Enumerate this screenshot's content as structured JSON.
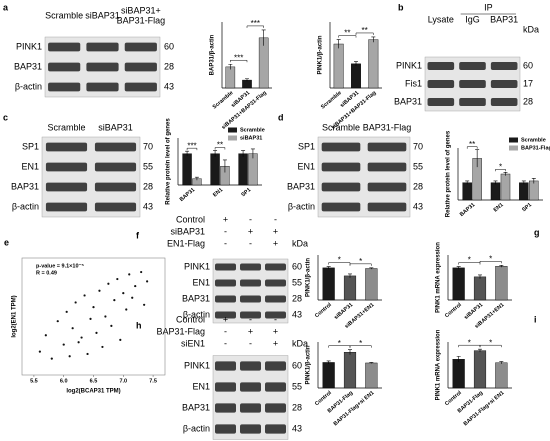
{
  "blots": [
    {
      "letter": "a",
      "columns": [
        "Scramble",
        "siBAP31",
        [
          "siBAP31+",
          "BAP31-Flag"
        ]
      ],
      "rows": [
        {
          "name": "PINK1",
          "kda": 60
        },
        {
          "name": "BAP31",
          "kda": 28
        },
        {
          "name": "β-actin",
          "kda": 43
        }
      ]
    },
    {
      "letter": "b",
      "ip_label": "IP",
      "kda_label": "kDa",
      "columns": [
        "Lysate",
        "IgG",
        "BAP31"
      ],
      "rows": [
        {
          "name": "PINK1",
          "kda": 60
        },
        {
          "name": "Fis1",
          "kda": 17
        },
        {
          "name": "BAP31",
          "kda": 28
        }
      ]
    },
    {
      "letter": "c",
      "columns": [
        "Scramble",
        "siBAP31"
      ],
      "rows": [
        {
          "name": "SP1",
          "kda": 70
        },
        {
          "name": "EN1",
          "kda": 55
        },
        {
          "name": "BAP31",
          "kda": 28
        },
        {
          "name": "β-actin",
          "kda": 43
        }
      ]
    },
    {
      "letter": "d",
      "columns": [
        "Scramble",
        "BAP31-Flag"
      ],
      "rows": [
        {
          "name": "SP1",
          "kda": 70
        },
        {
          "name": "EN1",
          "kda": 55
        },
        {
          "name": "BAP31",
          "kda": 28
        },
        {
          "name": "β-actin",
          "kda": 43
        }
      ]
    },
    {
      "letter": "f",
      "kda_label": "kDa",
      "treatments": [
        {
          "name": "Control",
          "signs": [
            "+",
            "-",
            "-"
          ]
        },
        {
          "name": "siBAP31",
          "signs": [
            "-",
            "+",
            "+"
          ]
        },
        {
          "name": "EN1-Flag",
          "signs": [
            "-",
            "-",
            "+"
          ]
        }
      ],
      "rows": [
        {
          "name": "PINK1",
          "kda": 60
        },
        {
          "name": "EN1",
          "kda": 55
        },
        {
          "name": "BAP31",
          "kda": 28
        },
        {
          "name": "β-actin",
          "kda": 43
        }
      ]
    },
    {
      "letter": "h",
      "kda_label": "kDa",
      "treatments": [
        {
          "name": "Control",
          "signs": [
            "+",
            "-",
            "-"
          ]
        },
        {
          "name": "BAP31-Flag",
          "signs": [
            "-",
            "+",
            "+"
          ]
        },
        {
          "name": "siEN1",
          "signs": [
            "-",
            "-",
            "+"
          ]
        }
      ],
      "rows": [
        {
          "name": "PINK1",
          "kda": 60
        },
        {
          "name": "EN1",
          "kda": 55
        },
        {
          "name": "BAP31",
          "kda": 28
        },
        {
          "name": "β-actin",
          "kda": 43
        }
      ]
    }
  ],
  "chart_data": [
    {
      "type": "bar",
      "y_label": "BAP31/β-actin",
      "categories": [
        "Scramble",
        "siBAP31",
        "siBAP31+BAP31-Flag"
      ],
      "values": [
        0.8,
        0.3,
        1.9
      ],
      "errors": [
        0.1,
        0.05,
        0.3
      ],
      "colors": [
        "#a6a6a6",
        "#1a1a1a",
        "#a6a6a6"
      ],
      "ylim": [
        0,
        2.5
      ],
      "significance": [
        "***",
        "***"
      ]
    },
    {
      "type": "bar",
      "y_label": "PINK1/β-actin",
      "categories": [
        "Scramble",
        "siBAP31",
        "siBAP31+BAP31-Flag"
      ],
      "values": [
        1.0,
        0.55,
        1.1
      ],
      "errors": [
        0.1,
        0.05,
        0.06
      ],
      "colors": [
        "#a6a6a6",
        "#1a1a1a",
        "#a6a6a6"
      ],
      "ylim": [
        0,
        1.5
      ],
      "significance": [
        "**",
        "**"
      ]
    },
    {
      "type": "bar",
      "y_label": "Relative protein level of genes",
      "categories": [
        "BAP31",
        "EN1",
        "SP1"
      ],
      "series": [
        {
          "name": "Scramble",
          "color": "#1a1a1a",
          "values": [
            1.0,
            1.0,
            1.0
          ],
          "errors": [
            0.08,
            0.1,
            0.1
          ]
        },
        {
          "name": "siBAP31",
          "color": "#a6a6a6",
          "values": [
            0.2,
            0.6,
            1.0
          ],
          "errors": [
            0.05,
            0.2,
            0.15
          ]
        }
      ],
      "ylim": [
        0,
        1.5
      ],
      "significance": [
        "***",
        "**"
      ]
    },
    {
      "type": "bar",
      "y_label": "Relative protein level of genes",
      "categories": [
        "BAP31",
        "EN1",
        "SP1"
      ],
      "series": [
        {
          "name": "Scramble",
          "color": "#1a1a1a",
          "values": [
            1.0,
            1.0,
            1.0
          ],
          "errors": [
            0.1,
            0.1,
            0.1
          ]
        },
        {
          "name": "BAP31-Flag",
          "color": "#a6a6a6",
          "values": [
            2.4,
            1.5,
            1.1
          ],
          "errors": [
            0.5,
            0.1,
            0.15
          ]
        }
      ],
      "ylim": [
        0,
        3
      ],
      "significance": [
        "**",
        "*"
      ]
    },
    {
      "type": "scatter",
      "letter": "e",
      "x_label": "log2(BCAP31 TPM)",
      "y_label": "log2(EN1 TPM)",
      "annotations": [
        "p-value = 9.1×10⁻⁵",
        "R = 0.49"
      ],
      "x": [
        5.6,
        5.7,
        5.8,
        5.9,
        6.0,
        6.05,
        6.1,
        6.15,
        6.2,
        6.25,
        6.3,
        6.35,
        6.4,
        6.45,
        6.5,
        6.55,
        6.6,
        6.65,
        6.7,
        6.75,
        6.8,
        6.85,
        6.9,
        6.95,
        7.0,
        7.05,
        7.1,
        7.15,
        7.2,
        7.3,
        7.35,
        7.4
      ],
      "y": [
        0.5,
        1.2,
        0.2,
        1.8,
        0.8,
        2.2,
        0.3,
        1.5,
        2.6,
        0.9,
        1.1,
        2.9,
        0.4,
        1.9,
        2.4,
        1.3,
        3.1,
        0.7,
        2.0,
        3.4,
        1.6,
        2.7,
        3.6,
        1.0,
        3.0,
        2.3,
        3.8,
        2.8,
        3.3,
        3.9,
        2.5,
        3.5
      ],
      "xlim": [
        5.3,
        7.7
      ],
      "ylim": [
        -0.5,
        4.5
      ],
      "xticks": [
        5.5,
        {
          "value": 6,
          "label": "6.0"
        },
        6.5,
        {
          "value": 7,
          "label": "7.0"
        },
        7.5
      ]
    },
    {
      "type": "bar",
      "y_label": "PINK1/β-actin",
      "categories": [
        "Control",
        "siBAP31",
        "siBAP31+EN1"
      ],
      "values": [
        1.0,
        0.75,
        0.98
      ],
      "errors": [
        0.04,
        0.06,
        0.02
      ],
      "colors": [
        "#1a1a1a",
        "#555555",
        "#8c8c8c"
      ],
      "ylim": [
        0,
        1.4
      ],
      "significance": [
        "*",
        "*"
      ]
    },
    {
      "type": "bar",
      "letter": "g",
      "y_label": "PINK1 mRNA expression",
      "categories": [
        "Control",
        "siBAP31",
        "siBAP31+EN1"
      ],
      "values": [
        1.0,
        0.72,
        1.05
      ],
      "errors": [
        0.04,
        0.06,
        0.03
      ],
      "colors": [
        "#1a1a1a",
        "#555555",
        "#8c8c8c"
      ],
      "ylim": [
        0,
        1.4
      ],
      "significance": [
        "*",
        "*"
      ]
    },
    {
      "type": "bar",
      "y_label": "PINK1/β-actin",
      "categories": [
        "Control",
        "BAP31-Flag",
        "BAP31-Flag+si EN1"
      ],
      "values": [
        1.0,
        1.4,
        0.98
      ],
      "errors": [
        0.06,
        0.1,
        0.02
      ],
      "colors": [
        "#1a1a1a",
        "#555555",
        "#8c8c8c"
      ],
      "ylim": [
        0,
        1.8
      ],
      "significance": [
        "*",
        "*"
      ]
    },
    {
      "type": "bar",
      "letter": "i",
      "y_label": "PINK1 mRNA expression",
      "categories": [
        "Control",
        "BAP31-Flag",
        "BAP31-Flag+si EN1"
      ],
      "values": [
        1.0,
        1.3,
        0.88
      ],
      "errors": [
        0.1,
        0.05,
        0.04
      ],
      "colors": [
        "#1a1a1a",
        "#555555",
        "#8c8c8c"
      ],
      "ylim": [
        0,
        1.6
      ],
      "significance": [
        "*",
        "*"
      ]
    }
  ]
}
